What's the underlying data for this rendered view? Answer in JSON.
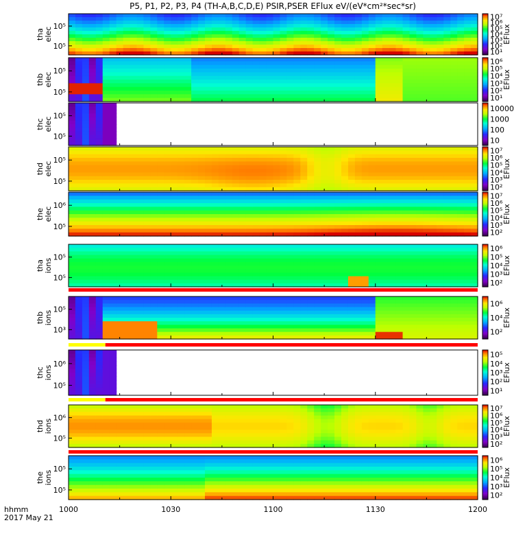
{
  "title": "P5, P1, P2, P3, P4 (TH-A,B,C,D,E) PSIR,PSER EFlux eV/(eV*cm²*sec*sr)",
  "footer": {
    "time_format": "hhmm",
    "date": "2017 May 21"
  },
  "chart_data": {
    "type": "heatmap",
    "x_ticks": [
      "1000",
      "1030",
      "1100",
      "1130",
      "1200"
    ],
    "x_range": [
      "10:00",
      "12:00"
    ],
    "panels": [
      {
        "id": "tha-elec",
        "ylabel": [
          "tha",
          "elec"
        ],
        "yticks": [
          "10⁵",
          "10⁵"
        ],
        "cbar_label": "EFlux",
        "cbar_ticks": [
          "10⁷",
          "10⁶",
          "10⁵",
          "10⁴",
          "10³",
          "10²",
          "10¹"
        ],
        "log_range": [
          1,
          7
        ],
        "fill_end": 120
      },
      {
        "id": "thb-elec",
        "ylabel": [
          "thb",
          "elec"
        ],
        "yticks": [
          "10⁵",
          "10⁵"
        ],
        "cbar_label": "EFlux",
        "cbar_ticks": [
          "10⁶",
          "10⁵",
          "10⁴",
          "10³",
          "10²",
          "10¹"
        ],
        "log_range": [
          1,
          6
        ],
        "fill_end": 120
      },
      {
        "id": "thc-elec",
        "ylabel": [
          "thc",
          "elec"
        ],
        "yticks": [
          "10⁵",
          "10⁵"
        ],
        "cbar_label": "",
        "cbar_ticks": [
          "10000",
          "1000",
          "100",
          "10"
        ],
        "log_range": [
          0,
          5
        ],
        "fill_end": 13
      },
      {
        "id": "thd-elec",
        "ylabel": [
          "thd",
          "elec"
        ],
        "yticks": [
          "10⁵",
          "10⁵"
        ],
        "cbar_label": "EFlux",
        "cbar_ticks": [
          "10⁷",
          "10⁶",
          "10⁵",
          "10⁴",
          "10³",
          "10²"
        ],
        "log_range": [
          2,
          7
        ],
        "fill_end": 120
      },
      {
        "id": "the-elec",
        "ylabel": [
          "the",
          "elec"
        ],
        "yticks": [
          "10⁶",
          "10⁵"
        ],
        "cbar_label": "EFlux",
        "cbar_ticks": [
          "10⁷",
          "10⁶",
          "10⁵",
          "10⁴",
          "10³",
          "10²"
        ],
        "log_range": [
          2,
          7
        ],
        "fill_end": 120
      },
      {
        "id": "tha-ions",
        "ylabel": [
          "tha",
          "ions"
        ],
        "yticks": [
          "10⁵",
          "10⁵"
        ],
        "cbar_label": "EFlux",
        "cbar_ticks": [
          "10⁶",
          "10⁵",
          "10⁴",
          "10³",
          "10²"
        ],
        "log_range": [
          2,
          6
        ],
        "fill_end": 120
      },
      {
        "id": "thb-ions",
        "ylabel": [
          "thb",
          "ions"
        ],
        "yticks": [
          "10⁵",
          "10³"
        ],
        "cbar_label": "EFlux",
        "cbar_ticks": [
          "10⁶",
          "10⁴",
          "10²"
        ],
        "log_range": [
          2,
          6
        ],
        "fill_end": 120
      },
      {
        "id": "thc-ions",
        "ylabel": [
          "thc",
          "ions"
        ],
        "yticks": [
          "10⁶",
          "10⁵"
        ],
        "cbar_label": "EFlux",
        "cbar_ticks": [
          "10⁵",
          "10⁴",
          "10³",
          "10²",
          "10¹"
        ],
        "log_range": [
          1,
          5
        ],
        "fill_end": 13
      },
      {
        "id": "thd-ions",
        "ylabel": [
          "thd",
          "ions"
        ],
        "yticks": [
          "10⁶",
          "10⁵"
        ],
        "cbar_label": "EFlux",
        "cbar_ticks": [
          "10⁷",
          "10⁶",
          "10⁵",
          "10⁴",
          "10³",
          "10²"
        ],
        "log_range": [
          2,
          7
        ],
        "fill_end": 120
      },
      {
        "id": "the-ions",
        "ylabel": [
          "the",
          "ions"
        ],
        "yticks": [
          "10⁵",
          "10⁵"
        ],
        "cbar_label": "EFlux",
        "cbar_ticks": [
          "10⁶",
          "10⁵",
          "10⁴",
          "10³",
          "10²"
        ],
        "log_range": [
          2,
          6
        ],
        "fill_end": 120
      }
    ],
    "colors": {
      "axis": "#000000",
      "status_red": "#ff0000",
      "status_yellow": "#ffff00"
    }
  }
}
